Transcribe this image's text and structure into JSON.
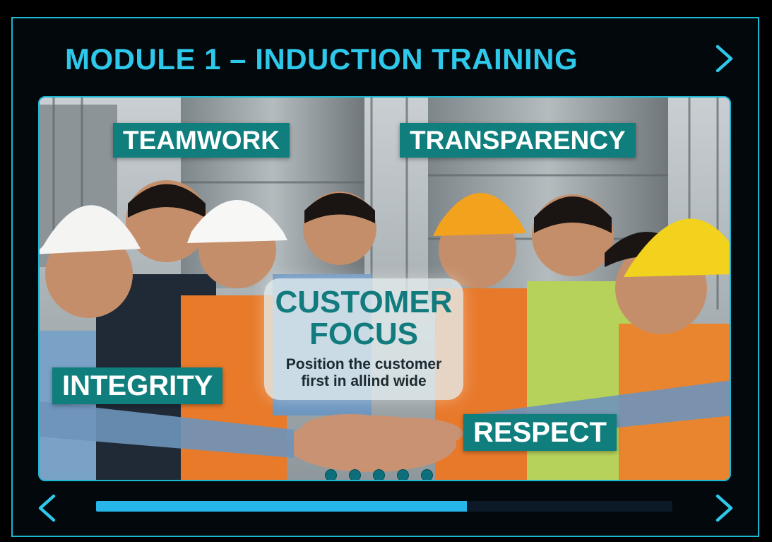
{
  "module_title": "MODULE 1 – INDUCTION TRAINING",
  "accent_color": "#2ec8ea",
  "nav": {
    "next_top_icon": "chevron-right-icon",
    "prev_icon": "chevron-left-icon",
    "next_icon": "chevron-right-icon"
  },
  "slide": {
    "labels": {
      "teamwork": "TEAMWORK",
      "transparency": "TRANSPARENCY",
      "integrity": "INTEGRITY",
      "respect": "RESPECT"
    },
    "focus": {
      "title": "CUSTOMER FOCUS",
      "description": "Position the customer first in allind wide"
    },
    "image_description_icon": "group-photo-hands-together",
    "pagination_count": 5
  },
  "progress": {
    "fraction": 0.643
  }
}
